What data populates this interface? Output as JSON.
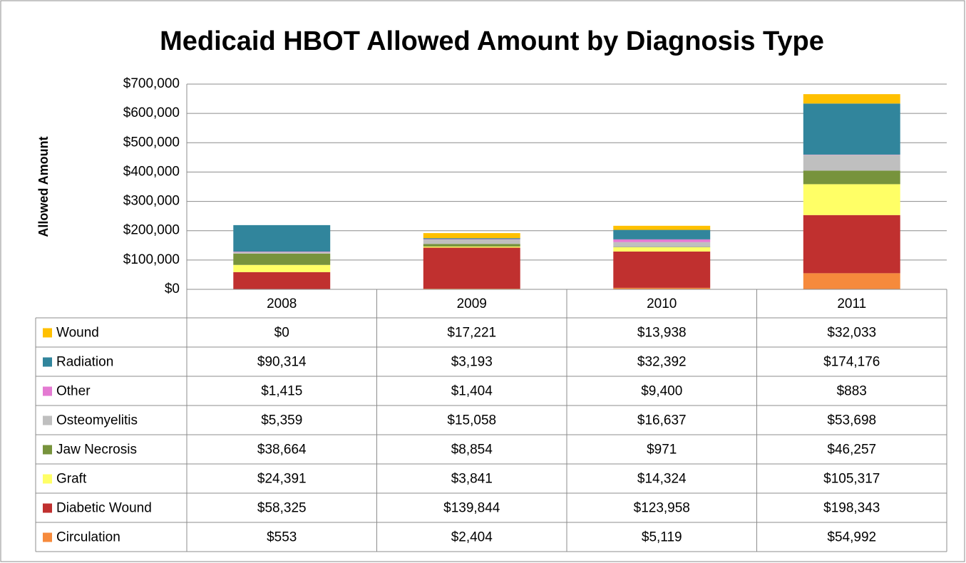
{
  "chart_data": {
    "type": "bar",
    "stacked": true,
    "title": "Medicaid HBOT Allowed Amount by Diagnosis Type",
    "y_label": "Allowed Amount",
    "categories": [
      "2008",
      "2009",
      "2010",
      "2011"
    ],
    "ylim": [
      0,
      700000
    ],
    "yticks": [
      {
        "value": 0,
        "label": "$0"
      },
      {
        "value": 100000,
        "label": "$100,000"
      },
      {
        "value": 200000,
        "label": "$200,000"
      },
      {
        "value": 300000,
        "label": "$300,000"
      },
      {
        "value": 400000,
        "label": "$400,000"
      },
      {
        "value": 500000,
        "label": "$500,000"
      },
      {
        "value": 600000,
        "label": "$600,000"
      },
      {
        "value": 700000,
        "label": "$700,000"
      }
    ],
    "grid": true,
    "series": [
      {
        "name": "Wound",
        "color": "#ffc000",
        "values": [
          0,
          17221,
          13938,
          32033
        ],
        "value_labels": [
          "$0",
          "$17,221",
          "$13,938",
          "$32,033"
        ]
      },
      {
        "name": "Radiation",
        "color": "#31859c",
        "values": [
          90314,
          3193,
          32392,
          174176
        ],
        "value_labels": [
          "$90,314",
          "$3,193",
          "$32,392",
          "$174,176"
        ]
      },
      {
        "name": "Other",
        "color": "#e47ad2",
        "values": [
          1415,
          1404,
          9400,
          883
        ],
        "value_labels": [
          "$1,415",
          "$1,404",
          "$9,400",
          "$883"
        ]
      },
      {
        "name": "Osteomyelitis",
        "color": "#bfbfbf",
        "values": [
          5359,
          15058,
          16637,
          53698
        ],
        "value_labels": [
          "$5,359",
          "$15,058",
          "$16,637",
          "$53,698"
        ]
      },
      {
        "name": "Jaw Necrosis",
        "color": "#77933c",
        "values": [
          38664,
          8854,
          971,
          46257
        ],
        "value_labels": [
          "$38,664",
          "$8,854",
          "$971",
          "$46,257"
        ]
      },
      {
        "name": "Graft",
        "color": "#ffff66",
        "values": [
          24391,
          3841,
          14324,
          105317
        ],
        "value_labels": [
          "$24,391",
          "$3,841",
          "$14,324",
          "$105,317"
        ]
      },
      {
        "name": "Diabetic Wound",
        "color": "#c0302f",
        "values": [
          58325,
          139844,
          123958,
          198343
        ],
        "value_labels": [
          "$58,325",
          "$139,844",
          "$123,958",
          "$198,343"
        ]
      },
      {
        "name": "Circulation",
        "color": "#f68a3c",
        "values": [
          553,
          2404,
          5119,
          54992
        ],
        "value_labels": [
          "$553",
          "$2,404",
          "$5,119",
          "$54,992"
        ]
      }
    ]
  }
}
